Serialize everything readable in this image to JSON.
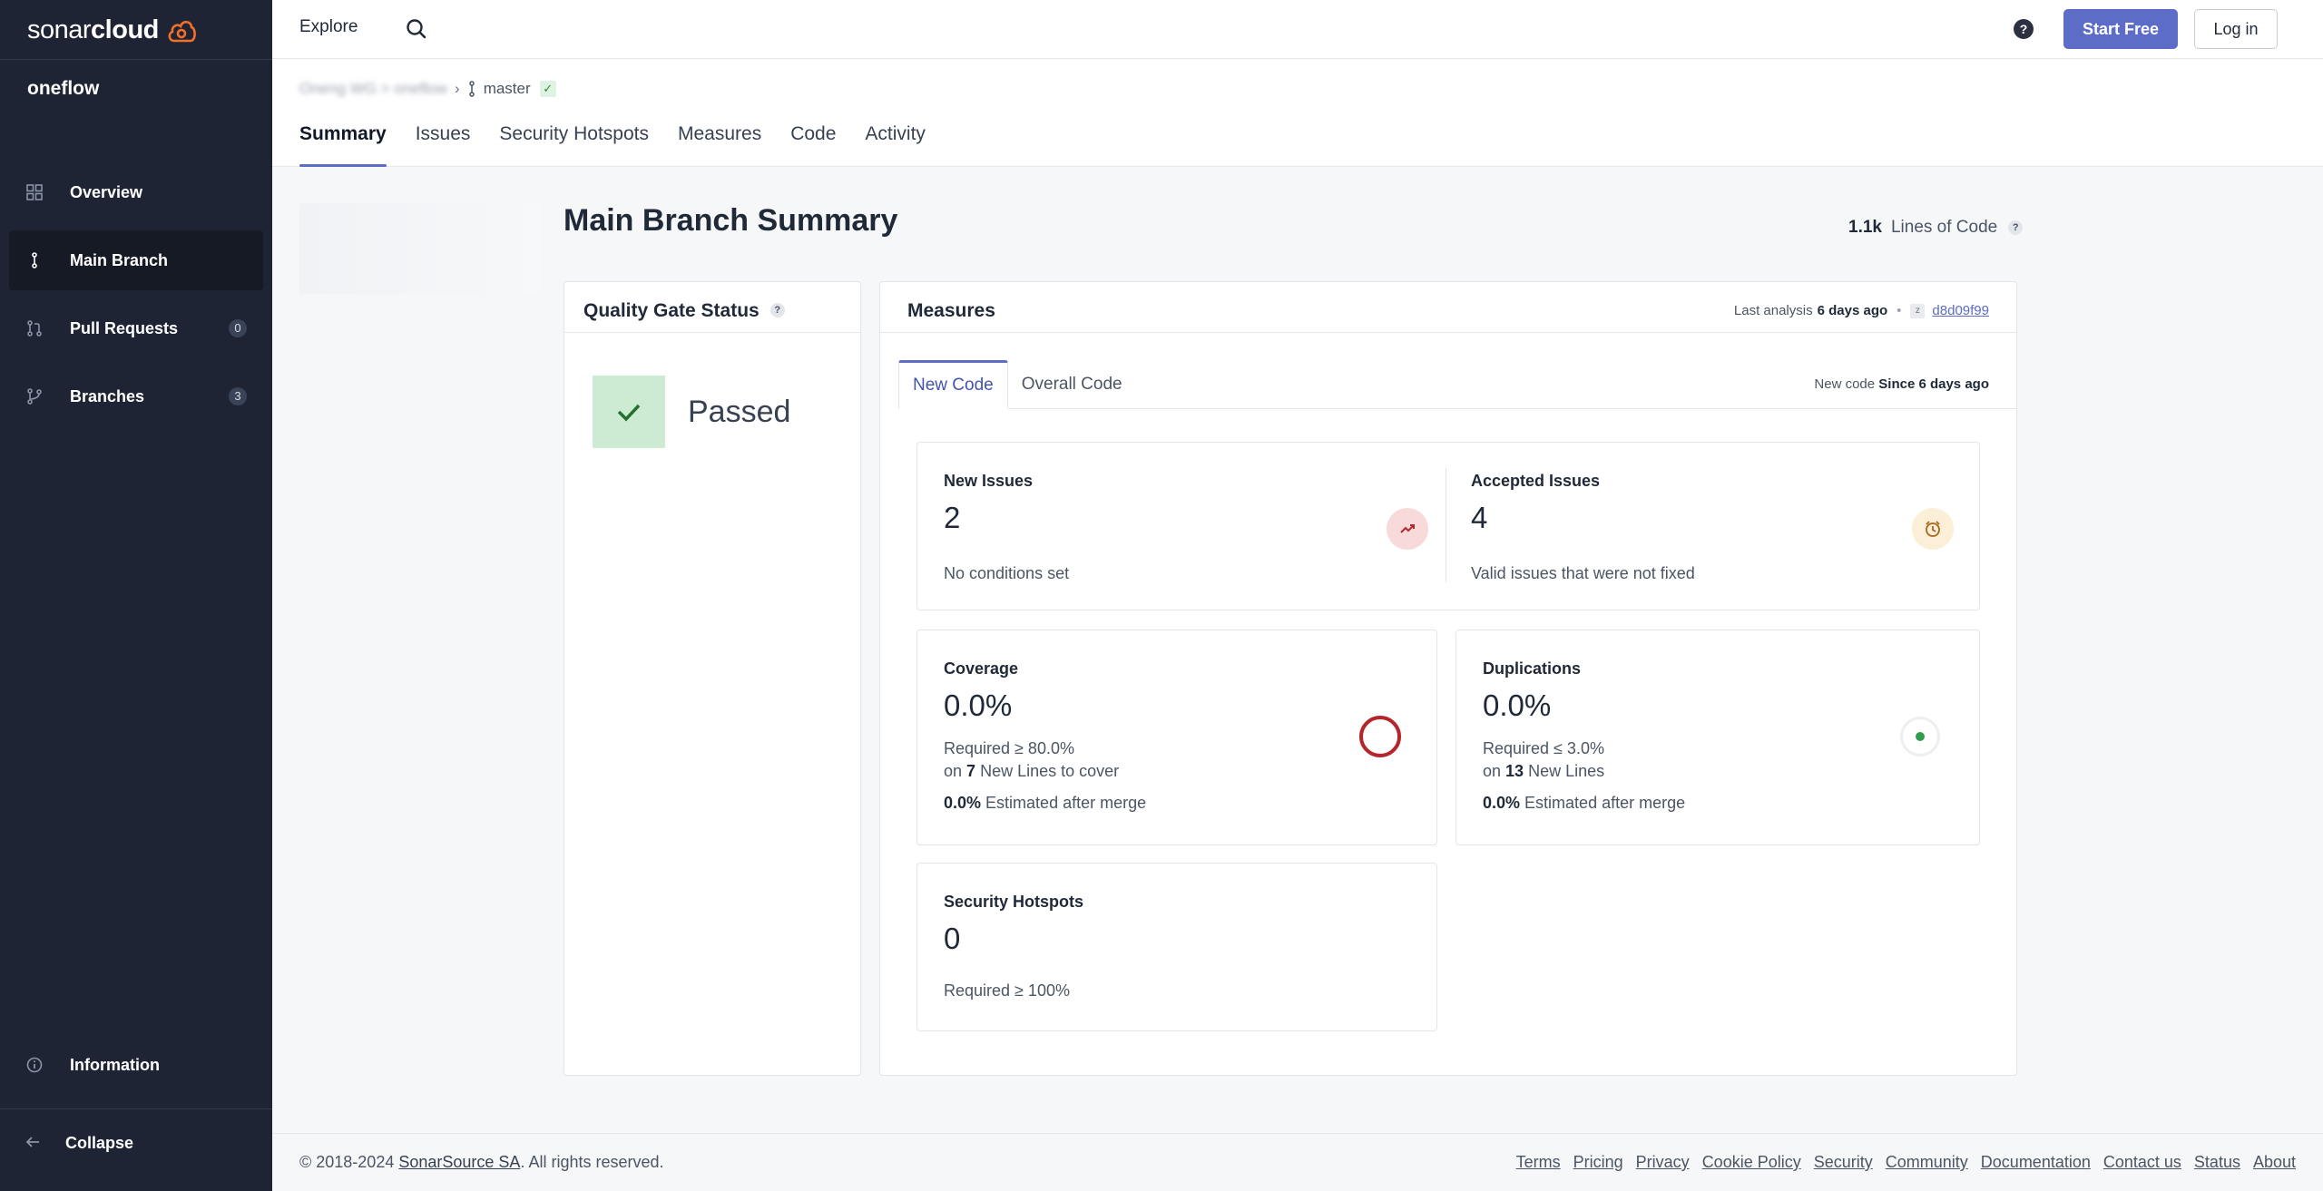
{
  "sidebar": {
    "logo_light": "sonar",
    "logo_bold": "cloud",
    "project_name": "oneflow",
    "items": [
      {
        "label": "Overview",
        "icon": "grid-icon"
      },
      {
        "label": "Main Branch",
        "icon": "branch-icon"
      },
      {
        "label": "Pull Requests",
        "icon": "pull-request-icon",
        "badge": "0"
      },
      {
        "label": "Branches",
        "icon": "branches-icon",
        "badge": "3"
      },
      {
        "label": "Information",
        "icon": "info-icon"
      }
    ],
    "collapse_label": "Collapse"
  },
  "topbar": {
    "explore_label": "Explore",
    "help_label": "?",
    "start_free_label": "Start Free",
    "login_label": "Log in"
  },
  "project": {
    "breadcrumb_org": "Oneng WG > oneflow",
    "branch": "master",
    "tabs": [
      "Summary",
      "Issues",
      "Security Hotspots",
      "Measures",
      "Code",
      "Activity"
    ]
  },
  "summary": {
    "title": "Main Branch Summary",
    "loc_value": "1.1k",
    "loc_label": "Lines of Code"
  },
  "quality_gate": {
    "title": "Quality Gate Status",
    "status": "Passed"
  },
  "measures": {
    "title": "Measures",
    "last_analysis_label": "Last analysis",
    "last_analysis_value": "6 days ago",
    "commit": "d8d09f99",
    "tabs": [
      "New Code",
      "Overall Code"
    ],
    "new_code_label": "New code",
    "new_code_value": "Since 6 days ago",
    "new_issues": {
      "label": "New Issues",
      "value": "2",
      "note": "No conditions set"
    },
    "accepted_issues": {
      "label": "Accepted Issues",
      "value": "4",
      "note": "Valid issues that were not fixed"
    },
    "coverage": {
      "label": "Coverage",
      "value": "0.0%",
      "required": "Required ≥ 80.0%",
      "on_prefix": "on",
      "lines": "7",
      "lines_suffix": "New Lines to cover",
      "est_value": "0.0%",
      "est_label": "Estimated after merge"
    },
    "duplications": {
      "label": "Duplications",
      "value": "0.0%",
      "required": "Required ≤ 3.0%",
      "on_prefix": "on",
      "lines": "13",
      "lines_suffix": "New Lines",
      "est_value": "0.0%",
      "est_label": "Estimated after merge"
    },
    "hotspots": {
      "label": "Security Hotspots",
      "value": "0",
      "required": "Required ≥ 100%"
    }
  },
  "footer": {
    "copyright": "© 2018-2024",
    "company": "SonarSource SA",
    "rights": ". All rights reserved.",
    "links": [
      "Terms",
      "Pricing",
      "Privacy",
      "Cookie Policy",
      "Security",
      "Community",
      "Documentation",
      "Contact us",
      "Status",
      "About"
    ]
  },
  "colors": {
    "sidebar_bg": "#1e2433",
    "accent": "#5d6cc6",
    "passed": "#cdebd3",
    "coverage_ring": "#b4262b",
    "duplication_dot": "#2e9e4a"
  }
}
